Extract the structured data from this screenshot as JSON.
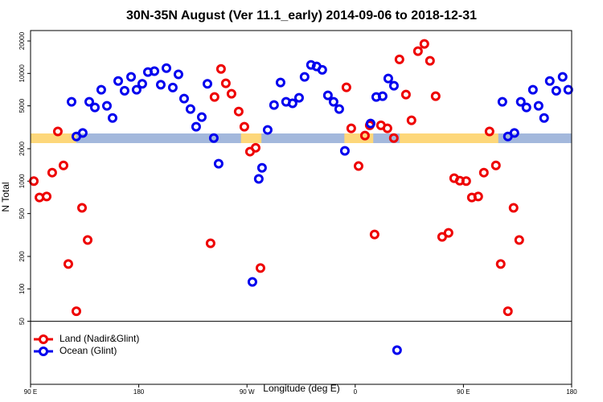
{
  "chart_data": {
    "type": "scatter",
    "title": "30N-35N August (Ver 11.1_early)   2014-09-06 to 2018-12-31",
    "x_label": "Longitude (deg E)",
    "y_label": "N Total",
    "log_y": true,
    "xlim": [
      90,
      540
    ],
    "ylim": [
      13,
      25000
    ],
    "xticks": [
      {
        "value": 90,
        "label": "90 E"
      },
      {
        "value": 180,
        "label": "180"
      },
      {
        "value": 270,
        "label": "90 W"
      },
      {
        "value": 360,
        "label": "0"
      },
      {
        "value": 450,
        "label": "90 E"
      },
      {
        "value": 540,
        "label": "180"
      }
    ],
    "yticks": [
      50,
      100,
      200,
      500,
      1000,
      2000,
      5000,
      10000,
      20000
    ],
    "hline": 50,
    "band": {
      "value": 2500,
      "ocean_color": "#a3b8dc",
      "land_color": "#fdd77a",
      "land_segments": [
        [
          90,
          128
        ],
        [
          265,
          282
        ],
        [
          351,
          375
        ],
        [
          397,
          479
        ]
      ]
    },
    "legend": "bottom-left",
    "series": [
      {
        "name": "Land (Nadir&Glint)",
        "color": "#ee0000",
        "x": [
          92.7,
          97.4,
          103.4,
          108,
          112.7,
          117.4,
          121.4,
          128.1,
          132.8,
          137.5,
          239.7,
          243,
          248.4,
          252.4,
          257.1,
          263.1,
          267.8,
          272.5,
          277.2,
          281.2,
          352.7,
          356.7,
          362.8,
          368.1,
          372.1,
          376.1,
          381.4,
          386.8,
          392.1,
          396.8,
          402.2,
          406.8,
          412.2,
          417.5,
          422.2,
          426.9,
          432.3,
          437.6,
          442.3,
          447,
          452.3,
          457,
          462.3,
          467,
          471.7,
          477,
          481,
          487,
          491.7,
          496.4
        ],
        "values": [
          1000,
          705,
          720,
          1200,
          2890,
          1400,
          170,
          62,
          565,
          284,
          265,
          6040,
          11000,
          8090,
          6470,
          4430,
          3200,
          1880,
          2040,
          156,
          7430,
          3090,
          1380,
          2650,
          3300,
          320,
          3300,
          3090,
          2510,
          13500,
          6360,
          3670,
          16100,
          18800,
          13100,
          6150,
          304,
          331,
          1065,
          1010,
          1000,
          705,
          720,
          1200,
          2890,
          1400,
          170,
          62,
          565,
          284
        ]
      },
      {
        "name": "Ocean (Glint)",
        "color": "#0000ee",
        "x": [
          124.1,
          128.1,
          133.4,
          138.8,
          143.5,
          148.8,
          153.5,
          158.2,
          162.9,
          168.2,
          173.6,
          178.2,
          182.9,
          187.6,
          193,
          198.3,
          203,
          208.3,
          213,
          217.7,
          223,
          227.7,
          232.4,
          237.1,
          242.4,
          246.4,
          274.5,
          279.8,
          282.5,
          287.2,
          292.5,
          297.9,
          302.5,
          307.9,
          313.3,
          317.9,
          323.2,
          327.9,
          332.6,
          337.3,
          342,
          346.7,
          351.4,
          372.8,
          377.5,
          382.8,
          387.5,
          392.2,
          394.8,
          482.4,
          487,
          492.4,
          497.7,
          502.4,
          507.8,
          512.5,
          517.1,
          521.8,
          527.2,
          532.5,
          537.2
        ],
        "values": [
          5450,
          2600,
          2800,
          5450,
          4830,
          7050,
          5000,
          3860,
          8510,
          6900,
          9290,
          7050,
          8000,
          10300,
          10500,
          7850,
          11200,
          7400,
          9800,
          5840,
          4670,
          3200,
          3930,
          8000,
          2510,
          1450,
          116,
          1050,
          1330,
          2990,
          5090,
          8230,
          5450,
          5280,
          5940,
          9290,
          12000,
          11600,
          10800,
          6250,
          5450,
          4670,
          1910,
          3430,
          6040,
          6150,
          8970,
          7690,
          27,
          5450,
          2600,
          2800,
          5450,
          4830,
          7050,
          5000,
          3860,
          8510,
          6900,
          9290,
          7050
        ]
      }
    ]
  }
}
